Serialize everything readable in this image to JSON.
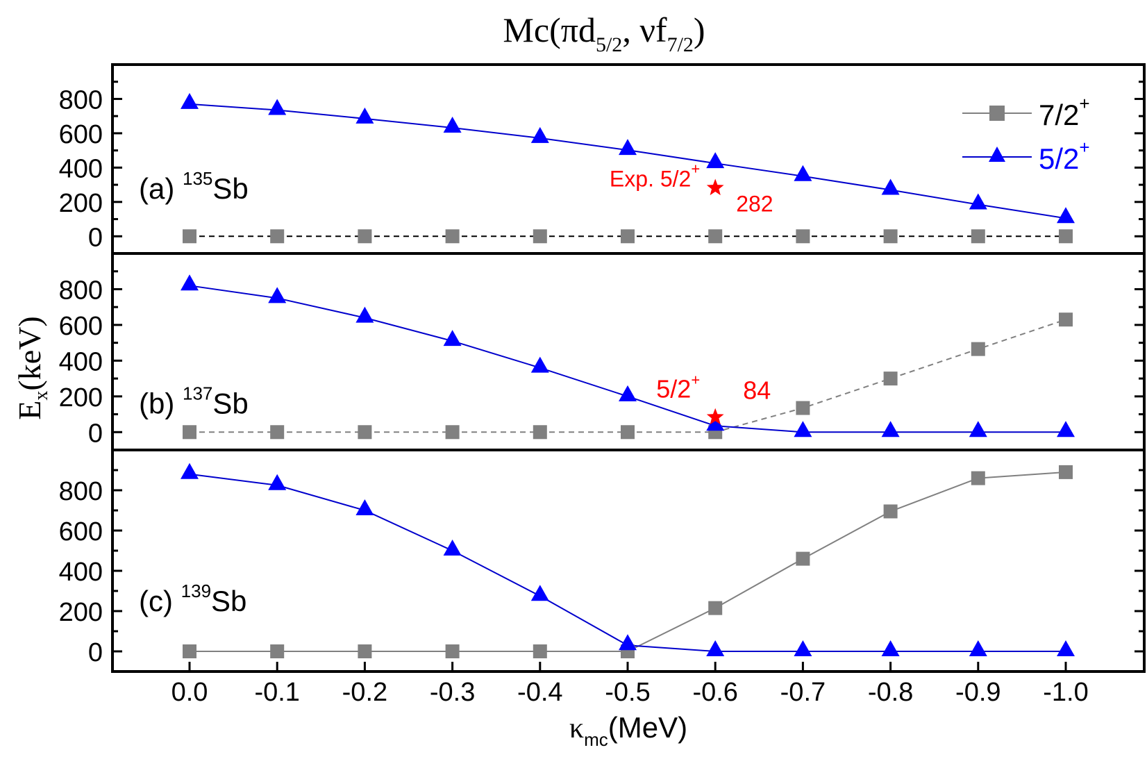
{
  "chart_data": {
    "type": "line",
    "title": {
      "main": "Mc(πd",
      "sub1": "5/2",
      "mid": ", νf",
      "sub2": "7/2",
      "end": ")"
    },
    "xlabel": {
      "main": "κ",
      "sub": "mc",
      "end": "(MeV)"
    },
    "ylabel": {
      "main": "E",
      "sub": "x",
      "end": "(keV)"
    },
    "x": [
      0.0,
      -0.1,
      -0.2,
      -0.3,
      -0.4,
      -0.5,
      -0.6,
      -0.7,
      -0.8,
      -0.9,
      -1.0
    ],
    "x_tick_labels": [
      "0.0",
      "-0.1",
      "-0.2",
      "-0.3",
      "-0.4",
      "-0.5",
      "-0.6",
      "-0.7",
      "-0.8",
      "-0.9",
      "-1.0"
    ],
    "xlim": [
      0.09,
      -1.09
    ],
    "ylim": [
      -100,
      1000
    ],
    "y_tick_labels": [
      "0",
      "200",
      "400",
      "600",
      "800"
    ],
    "y_ticks": [
      0,
      200,
      400,
      600,
      800
    ],
    "grid": false,
    "legend": {
      "placement": "top-right (panel a)",
      "entries": [
        {
          "label": "7/2",
          "sup": "+",
          "color": "#808080",
          "marker": "square"
        },
        {
          "label": "5/2",
          "sup": "+",
          "color": "#0000ff",
          "marker": "triangle"
        }
      ]
    },
    "panels": [
      {
        "label": "(a)",
        "mass": "135",
        "element": "Sb",
        "series": [
          {
            "name": "7/2+",
            "color": "#808080",
            "line_color": "#000000",
            "dashed": true,
            "marker": "square",
            "values": [
              0,
              0,
              0,
              0,
              0,
              0,
              0,
              0,
              0,
              0,
              0
            ]
          },
          {
            "name": "5/2+",
            "color": "#0000ff",
            "line_color": "#0000cc",
            "dashed": false,
            "marker": "triangle",
            "values": [
              770,
              735,
              685,
              632,
              572,
              502,
              425,
              350,
              270,
              185,
              105
            ]
          }
        ],
        "experiment": {
          "x": -0.6,
          "y": 282,
          "label_left": "Exp. 5/2",
          "sup": "+",
          "value_label": "282",
          "color": "#ff0000"
        }
      },
      {
        "label": "(b)",
        "mass": "137",
        "element": "Sb",
        "series": [
          {
            "name": "7/2+",
            "color": "#808080",
            "line_color": "#808080",
            "dashed": true,
            "marker": "square",
            "values": [
              0,
              0,
              0,
              0,
              0,
              0,
              0,
              135,
              300,
              465,
              630
            ]
          },
          {
            "name": "5/2+",
            "color": "#0000ff",
            "line_color": "#0000cc",
            "dashed": false,
            "marker": "triangle",
            "values": [
              820,
              750,
              640,
              510,
              360,
              200,
              35,
              0,
              0,
              0,
              0
            ]
          }
        ],
        "experiment": {
          "x": -0.6,
          "y": 84,
          "label_left": "5/2",
          "sup": "+",
          "value_label": "84",
          "color": "#ff0000"
        }
      },
      {
        "label": "(c)",
        "mass": "139",
        "element": "Sb",
        "series": [
          {
            "name": "7/2+",
            "color": "#808080",
            "line_color": "#808080",
            "dashed": false,
            "marker": "square",
            "values": [
              0,
              0,
              0,
              0,
              0,
              0,
              215,
              460,
              695,
              860,
              890
            ]
          },
          {
            "name": "5/2+",
            "color": "#0000ff",
            "line_color": "#0000cc",
            "dashed": false,
            "marker": "triangle",
            "values": [
              880,
              825,
              700,
              500,
              275,
              30,
              0,
              0,
              0,
              0,
              0
            ]
          }
        ]
      }
    ]
  }
}
